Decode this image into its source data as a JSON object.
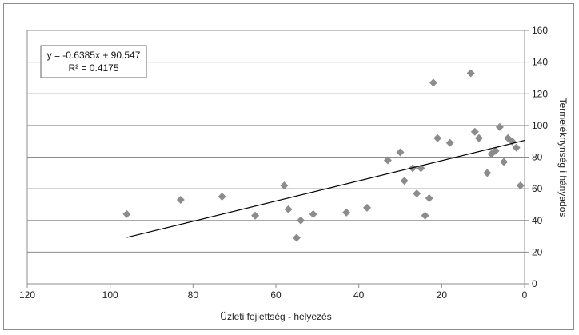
{
  "chart_data": {
    "type": "scatter",
    "title": "",
    "xlabel": "Üzleti fejlettség - helyezés",
    "ylabel": "Termeléknynség i hányados",
    "xlim": [
      0,
      120
    ],
    "ylim": [
      0,
      160
    ],
    "x_reversed": true,
    "y_axis_side": "right",
    "grid": "horizontal",
    "x_ticks": [
      "120",
      "100",
      "80",
      "60",
      "40",
      "20",
      "0"
    ],
    "y_ticks": [
      "0",
      "20",
      "40",
      "60",
      "80",
      "100",
      "120",
      "140",
      "160"
    ],
    "marker_color": "#8c8c8c",
    "trendline": {
      "equation": "y = -0.6385x + 90.547",
      "r_squared": "R² = 0.4175",
      "slope": -0.6385,
      "intercept": 90.547,
      "x_from": 96,
      "x_to": 0,
      "color": "#000000"
    },
    "points": [
      {
        "x": 96,
        "y": 44
      },
      {
        "x": 83,
        "y": 53
      },
      {
        "x": 73,
        "y": 55
      },
      {
        "x": 65,
        "y": 43
      },
      {
        "x": 58,
        "y": 62
      },
      {
        "x": 57,
        "y": 47
      },
      {
        "x": 55,
        "y": 29
      },
      {
        "x": 54,
        "y": 40
      },
      {
        "x": 51,
        "y": 44
      },
      {
        "x": 43,
        "y": 45
      },
      {
        "x": 38,
        "y": 48
      },
      {
        "x": 33,
        "y": 78
      },
      {
        "x": 30,
        "y": 83
      },
      {
        "x": 29,
        "y": 65
      },
      {
        "x": 27,
        "y": 73
      },
      {
        "x": 26,
        "y": 57
      },
      {
        "x": 25,
        "y": 73
      },
      {
        "x": 24,
        "y": 43
      },
      {
        "x": 23,
        "y": 54
      },
      {
        "x": 22,
        "y": 127
      },
      {
        "x": 21,
        "y": 92
      },
      {
        "x": 18,
        "y": 89
      },
      {
        "x": 13,
        "y": 133
      },
      {
        "x": 12,
        "y": 96
      },
      {
        "x": 11,
        "y": 92
      },
      {
        "x": 9,
        "y": 70
      },
      {
        "x": 8,
        "y": 82
      },
      {
        "x": 7,
        "y": 84
      },
      {
        "x": 6,
        "y": 99
      },
      {
        "x": 5,
        "y": 77
      },
      {
        "x": 4,
        "y": 92
      },
      {
        "x": 3,
        "y": 90
      },
      {
        "x": 2,
        "y": 86
      },
      {
        "x": 1,
        "y": 62
      }
    ]
  }
}
